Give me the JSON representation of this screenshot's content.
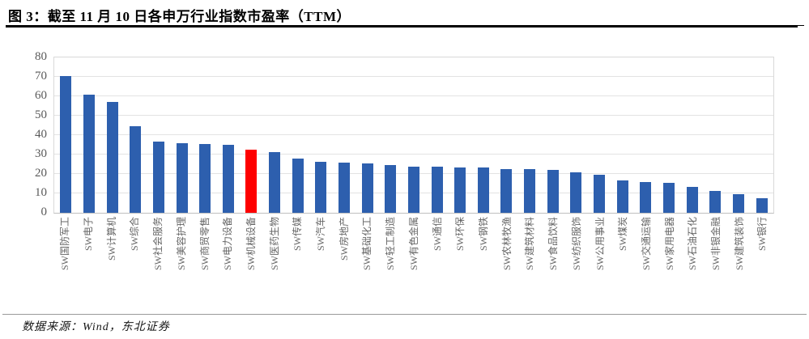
{
  "figure": {
    "title": "图 3：截至 11 月 10 日各申万行业指数市盈率（TTM）",
    "source": "数据来源：Wind，东北证券"
  },
  "chart_data": {
    "type": "bar",
    "title": "截至 11 月 10 日各申万行业指数市盈率（TTM）",
    "categories": [
      "SW国防军工",
      "SW电子",
      "SW计算机",
      "SW综合",
      "SW社会服务",
      "SW美容护理",
      "SW商贸零售",
      "SW电力设备",
      "SW机械设备",
      "SW医药生物",
      "SW传媒",
      "SW汽车",
      "SW房地产",
      "SW基础化工",
      "SW轻工制造",
      "SW有色金属",
      "SW通信",
      "SW环保",
      "SW钢铁",
      "SW农林牧渔",
      "SW建筑材料",
      "SW食品饮料",
      "SW纺织服饰",
      "SW公用事业",
      "SW煤炭",
      "SW交通运输",
      "SW家用电器",
      "SW石油石化",
      "SW非银金融",
      "SW建筑装饰",
      "SW银行"
    ],
    "values": [
      70.6,
      60.9,
      56.9,
      44.7,
      36.6,
      35.8,
      35.4,
      35.0,
      32.3,
      31.3,
      27.8,
      26.4,
      25.8,
      25.5,
      24.7,
      23.9,
      23.7,
      23.4,
      23.2,
      22.7,
      22.3,
      22.0,
      20.9,
      19.4,
      16.7,
      16.0,
      15.6,
      13.3,
      11.3,
      9.6,
      7.4
    ],
    "highlight": {
      "index": 8,
      "category": "SW机械设备",
      "color": "#fe0000"
    },
    "bar_color": "#2d5fae",
    "xlabel": "",
    "ylabel": "",
    "ylim": [
      0,
      80
    ],
    "y_ticks": [
      0,
      10,
      20,
      30,
      40,
      50,
      60,
      70,
      80
    ],
    "grid": "horizontal",
    "legend": "none"
  },
  "colors": {
    "bar_blue": "#2d5fae",
    "bar_red": "#fe0000",
    "axis_text": "#595959",
    "gridline": "#e3e3e3",
    "title_rule": "#000000",
    "footer_rule": "#9a9a9a"
  }
}
